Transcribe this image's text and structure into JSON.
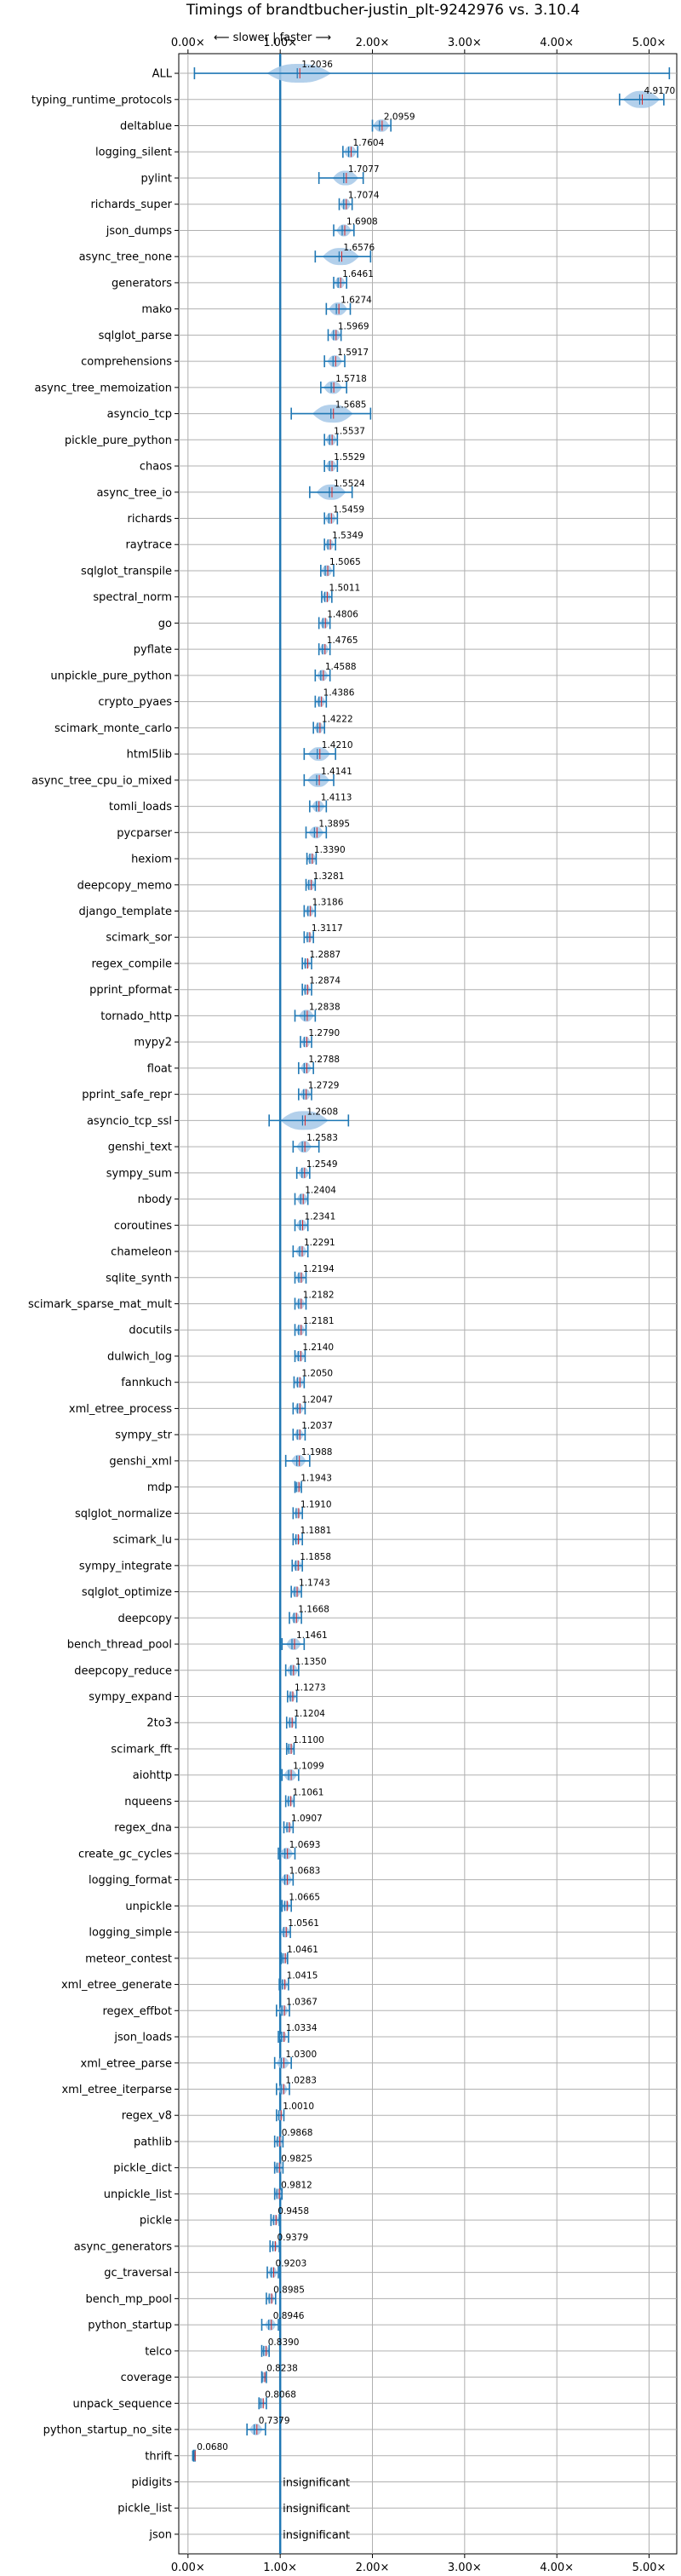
{
  "chart_data": {
    "type": "violin",
    "title": "Timings of brandtbucher-justin_plt-9242976 vs. 3.10.4",
    "subtitle": "⟵ slower | faster ⟶",
    "xlim": [
      -0.1,
      5.3
    ],
    "xticks": [
      0,
      1,
      2,
      3,
      4,
      5
    ],
    "xtick_labels": [
      "0.00×",
      "1.00×",
      "2.00×",
      "3.00×",
      "4.00×",
      "5.00×"
    ],
    "grid": true,
    "reference_line": 1.0,
    "colors": {
      "violin": "#a6c8e8",
      "line": "#1f77b4",
      "mean": "#d62728"
    },
    "benchmarks": [
      {
        "name": "ALL",
        "value": 1.2036,
        "label": "1.2036",
        "min": 0.07,
        "max": 5.22,
        "spread": 0.35
      },
      {
        "name": "typing_runtime_protocols",
        "value": 4.917,
        "label": "4.9170",
        "min": 4.68,
        "max": 5.16,
        "spread": 0.2
      },
      {
        "name": "deltablue",
        "value": 2.0959,
        "label": "2.0959",
        "min": 2.0,
        "max": 2.2,
        "spread": 0.09
      },
      {
        "name": "logging_silent",
        "value": 1.7604,
        "label": "1.7604",
        "min": 1.68,
        "max": 1.84,
        "spread": 0.07
      },
      {
        "name": "pylint",
        "value": 1.7077,
        "label": "1.7077",
        "min": 1.42,
        "max": 1.9,
        "spread": 0.14
      },
      {
        "name": "richards_super",
        "value": 1.7074,
        "label": "1.7074",
        "min": 1.64,
        "max": 1.78,
        "spread": 0.06
      },
      {
        "name": "json_dumps",
        "value": 1.6908,
        "label": "1.6908",
        "min": 1.58,
        "max": 1.8,
        "spread": 0.08
      },
      {
        "name": "async_tree_none",
        "value": 1.6576,
        "label": "1.6576",
        "min": 1.38,
        "max": 1.98,
        "spread": 0.2
      },
      {
        "name": "generators",
        "value": 1.6461,
        "label": "1.6461",
        "min": 1.58,
        "max": 1.72,
        "spread": 0.06
      },
      {
        "name": "mako",
        "value": 1.6274,
        "label": "1.6274",
        "min": 1.5,
        "max": 1.76,
        "spread": 0.1
      },
      {
        "name": "sqlglot_parse",
        "value": 1.5969,
        "label": "1.5969",
        "min": 1.52,
        "max": 1.66,
        "spread": 0.06
      },
      {
        "name": "comprehensions",
        "value": 1.5917,
        "label": "1.5917",
        "min": 1.48,
        "max": 1.7,
        "spread": 0.08
      },
      {
        "name": "async_tree_memoization",
        "value": 1.5718,
        "label": "1.5718",
        "min": 1.44,
        "max": 1.72,
        "spread": 0.1
      },
      {
        "name": "asyncio_tcp",
        "value": 1.5685,
        "label": "1.5685",
        "min": 1.12,
        "max": 1.98,
        "spread": 0.22
      },
      {
        "name": "pickle_pure_python",
        "value": 1.5537,
        "label": "1.5537",
        "min": 1.48,
        "max": 1.62,
        "spread": 0.06
      },
      {
        "name": "chaos",
        "value": 1.5529,
        "label": "1.5529",
        "min": 1.48,
        "max": 1.62,
        "spread": 0.06
      },
      {
        "name": "async_tree_io",
        "value": 1.5524,
        "label": "1.5524",
        "min": 1.32,
        "max": 1.78,
        "spread": 0.16
      },
      {
        "name": "richards",
        "value": 1.5459,
        "label": "1.5459",
        "min": 1.48,
        "max": 1.62,
        "spread": 0.06
      },
      {
        "name": "raytrace",
        "value": 1.5349,
        "label": "1.5349",
        "min": 1.48,
        "max": 1.6,
        "spread": 0.05
      },
      {
        "name": "sqlglot_transpile",
        "value": 1.5065,
        "label": "1.5065",
        "min": 1.44,
        "max": 1.58,
        "spread": 0.06
      },
      {
        "name": "spectral_norm",
        "value": 1.5011,
        "label": "1.5011",
        "min": 1.45,
        "max": 1.56,
        "spread": 0.05
      },
      {
        "name": "go",
        "value": 1.4806,
        "label": "1.4806",
        "min": 1.42,
        "max": 1.54,
        "spread": 0.05
      },
      {
        "name": "pyflate",
        "value": 1.4765,
        "label": "1.4765",
        "min": 1.42,
        "max": 1.54,
        "spread": 0.05
      },
      {
        "name": "unpickle_pure_python",
        "value": 1.4588,
        "label": "1.4588",
        "min": 1.38,
        "max": 1.54,
        "spread": 0.06
      },
      {
        "name": "crypto_pyaes",
        "value": 1.4386,
        "label": "1.4386",
        "min": 1.38,
        "max": 1.5,
        "spread": 0.05
      },
      {
        "name": "scimark_monte_carlo",
        "value": 1.4222,
        "label": "1.4222",
        "min": 1.36,
        "max": 1.48,
        "spread": 0.05
      },
      {
        "name": "html5lib",
        "value": 1.421,
        "label": "1.4210",
        "min": 1.26,
        "max": 1.6,
        "spread": 0.12
      },
      {
        "name": "async_tree_cpu_io_mixed",
        "value": 1.4141,
        "label": "1.4141",
        "min": 1.26,
        "max": 1.58,
        "spread": 0.12
      },
      {
        "name": "tomli_loads",
        "value": 1.4113,
        "label": "1.4113",
        "min": 1.32,
        "max": 1.5,
        "spread": 0.07
      },
      {
        "name": "pycparser",
        "value": 1.3895,
        "label": "1.3895",
        "min": 1.28,
        "max": 1.5,
        "spread": 0.08
      },
      {
        "name": "hexiom",
        "value": 1.339,
        "label": "1.3390",
        "min": 1.29,
        "max": 1.39,
        "spread": 0.05
      },
      {
        "name": "deepcopy_memo",
        "value": 1.3281,
        "label": "1.3281",
        "min": 1.28,
        "max": 1.38,
        "spread": 0.05
      },
      {
        "name": "django_template",
        "value": 1.3186,
        "label": "1.3186",
        "min": 1.26,
        "max": 1.38,
        "spread": 0.05
      },
      {
        "name": "scimark_sor",
        "value": 1.3117,
        "label": "1.3117",
        "min": 1.26,
        "max": 1.36,
        "spread": 0.04
      },
      {
        "name": "regex_compile",
        "value": 1.2887,
        "label": "1.2887",
        "min": 1.24,
        "max": 1.34,
        "spread": 0.04
      },
      {
        "name": "pprint_pformat",
        "value": 1.2874,
        "label": "1.2874",
        "min": 1.24,
        "max": 1.34,
        "spread": 0.04
      },
      {
        "name": "tornado_http",
        "value": 1.2838,
        "label": "1.2838",
        "min": 1.16,
        "max": 1.38,
        "spread": 0.08
      },
      {
        "name": "mypy2",
        "value": 1.279,
        "label": "1.2790",
        "min": 1.22,
        "max": 1.34,
        "spread": 0.05
      },
      {
        "name": "float",
        "value": 1.2788,
        "label": "1.2788",
        "min": 1.2,
        "max": 1.36,
        "spread": 0.06
      },
      {
        "name": "pprint_safe_repr",
        "value": 1.2729,
        "label": "1.2729",
        "min": 1.2,
        "max": 1.34,
        "spread": 0.06
      },
      {
        "name": "asyncio_tcp_ssl",
        "value": 1.2608,
        "label": "1.2608",
        "min": 0.88,
        "max": 1.74,
        "spread": 0.26
      },
      {
        "name": "genshi_text",
        "value": 1.2583,
        "label": "1.2583",
        "min": 1.14,
        "max": 1.42,
        "spread": 0.08
      },
      {
        "name": "sympy_sum",
        "value": 1.2549,
        "label": "1.2549",
        "min": 1.18,
        "max": 1.32,
        "spread": 0.06
      },
      {
        "name": "nbody",
        "value": 1.2404,
        "label": "1.2404",
        "min": 1.16,
        "max": 1.3,
        "spread": 0.06
      },
      {
        "name": "coroutines",
        "value": 1.2341,
        "label": "1.2341",
        "min": 1.16,
        "max": 1.3,
        "spread": 0.06
      },
      {
        "name": "chameleon",
        "value": 1.2291,
        "label": "1.2291",
        "min": 1.14,
        "max": 1.3,
        "spread": 0.06
      },
      {
        "name": "sqlite_synth",
        "value": 1.2194,
        "label": "1.2194",
        "min": 1.16,
        "max": 1.28,
        "spread": 0.05
      },
      {
        "name": "scimark_sparse_mat_mult",
        "value": 1.2182,
        "label": "1.2182",
        "min": 1.16,
        "max": 1.28,
        "spread": 0.05
      },
      {
        "name": "docutils",
        "value": 1.2181,
        "label": "1.2181",
        "min": 1.16,
        "max": 1.28,
        "spread": 0.05
      },
      {
        "name": "dulwich_log",
        "value": 1.214,
        "label": "1.2140",
        "min": 1.16,
        "max": 1.27,
        "spread": 0.05
      },
      {
        "name": "fannkuch",
        "value": 1.205,
        "label": "1.2050",
        "min": 1.15,
        "max": 1.26,
        "spread": 0.05
      },
      {
        "name": "xml_etree_process",
        "value": 1.2047,
        "label": "1.2047",
        "min": 1.14,
        "max": 1.27,
        "spread": 0.05
      },
      {
        "name": "sympy_str",
        "value": 1.2037,
        "label": "1.2037",
        "min": 1.14,
        "max": 1.27,
        "spread": 0.05
      },
      {
        "name": "genshi_xml",
        "value": 1.1988,
        "label": "1.1988",
        "min": 1.06,
        "max": 1.32,
        "spread": 0.08
      },
      {
        "name": "mdp",
        "value": 1.1943,
        "label": "1.1943",
        "min": 1.16,
        "max": 1.23,
        "spread": 0.04
      },
      {
        "name": "sqlglot_normalize",
        "value": 1.191,
        "label": "1.1910",
        "min": 1.14,
        "max": 1.24,
        "spread": 0.04
      },
      {
        "name": "scimark_lu",
        "value": 1.1881,
        "label": "1.1881",
        "min": 1.14,
        "max": 1.24,
        "spread": 0.04
      },
      {
        "name": "sympy_integrate",
        "value": 1.1858,
        "label": "1.1858",
        "min": 1.13,
        "max": 1.24,
        "spread": 0.05
      },
      {
        "name": "sqlglot_optimize",
        "value": 1.1743,
        "label": "1.1743",
        "min": 1.12,
        "max": 1.23,
        "spread": 0.05
      },
      {
        "name": "deepcopy",
        "value": 1.1668,
        "label": "1.1668",
        "min": 1.1,
        "max": 1.23,
        "spread": 0.05
      },
      {
        "name": "bench_thread_pool",
        "value": 1.1461,
        "label": "1.1461",
        "min": 1.02,
        "max": 1.26,
        "spread": 0.08
      },
      {
        "name": "deepcopy_reduce",
        "value": 1.135,
        "label": "1.1350",
        "min": 1.06,
        "max": 1.2,
        "spread": 0.06
      },
      {
        "name": "sympy_expand",
        "value": 1.1273,
        "label": "1.1273",
        "min": 1.08,
        "max": 1.18,
        "spread": 0.04
      },
      {
        "name": "2to3",
        "value": 1.1204,
        "label": "1.1204",
        "min": 1.07,
        "max": 1.17,
        "spread": 0.04
      },
      {
        "name": "scimark_fft",
        "value": 1.11,
        "label": "1.1100",
        "min": 1.07,
        "max": 1.15,
        "spread": 0.04
      },
      {
        "name": "aiohttp",
        "value": 1.1099,
        "label": "1.1099",
        "min": 1.02,
        "max": 1.2,
        "spread": 0.07
      },
      {
        "name": "nqueens",
        "value": 1.1061,
        "label": "1.1061",
        "min": 1.06,
        "max": 1.15,
        "spread": 0.04
      },
      {
        "name": "regex_dna",
        "value": 1.0907,
        "label": "1.0907",
        "min": 1.04,
        "max": 1.14,
        "spread": 0.04
      },
      {
        "name": "create_gc_cycles",
        "value": 1.0693,
        "label": "1.0693",
        "min": 0.98,
        "max": 1.16,
        "spread": 0.07
      },
      {
        "name": "logging_format",
        "value": 1.0683,
        "label": "1.0683",
        "min": 1.0,
        "max": 1.14,
        "spread": 0.06
      },
      {
        "name": "unpickle",
        "value": 1.0665,
        "label": "1.0665",
        "min": 1.02,
        "max": 1.12,
        "spread": 0.04
      },
      {
        "name": "logging_simple",
        "value": 1.0561,
        "label": "1.0561",
        "min": 1.0,
        "max": 1.11,
        "spread": 0.05
      },
      {
        "name": "meteor_contest",
        "value": 1.0461,
        "label": "1.0461",
        "min": 1.01,
        "max": 1.08,
        "spread": 0.04
      },
      {
        "name": "xml_etree_generate",
        "value": 1.0415,
        "label": "1.0415",
        "min": 0.99,
        "max": 1.09,
        "spread": 0.04
      },
      {
        "name": "regex_effbot",
        "value": 1.0367,
        "label": "1.0367",
        "min": 0.96,
        "max": 1.1,
        "spread": 0.05
      },
      {
        "name": "json_loads",
        "value": 1.0334,
        "label": "1.0334",
        "min": 0.98,
        "max": 1.09,
        "spread": 0.04
      },
      {
        "name": "xml_etree_parse",
        "value": 1.03,
        "label": "1.0300",
        "min": 0.94,
        "max": 1.12,
        "spread": 0.07
      },
      {
        "name": "xml_etree_iterparse",
        "value": 1.0283,
        "label": "1.0283",
        "min": 0.96,
        "max": 1.1,
        "spread": 0.05
      },
      {
        "name": "regex_v8",
        "value": 1.001,
        "label": "1.0010",
        "min": 0.96,
        "max": 1.04,
        "spread": 0.03
      },
      {
        "name": "pathlib",
        "value": 0.9868,
        "label": "0.9868",
        "min": 0.94,
        "max": 1.03,
        "spread": 0.04
      },
      {
        "name": "pickle_dict",
        "value": 0.9825,
        "label": "0.9825",
        "min": 0.94,
        "max": 1.03,
        "spread": 0.04
      },
      {
        "name": "unpickle_list",
        "value": 0.9812,
        "label": "0.9812",
        "min": 0.94,
        "max": 1.02,
        "spread": 0.04
      },
      {
        "name": "pickle",
        "value": 0.9458,
        "label": "0.9458",
        "min": 0.9,
        "max": 0.99,
        "spread": 0.04
      },
      {
        "name": "async_generators",
        "value": 0.9379,
        "label": "0.9379",
        "min": 0.89,
        "max": 0.99,
        "spread": 0.04
      },
      {
        "name": "gc_traversal",
        "value": 0.9203,
        "label": "0.9203",
        "min": 0.86,
        "max": 0.98,
        "spread": 0.05
      },
      {
        "name": "bench_mp_pool",
        "value": 0.8985,
        "label": "0.8985",
        "min": 0.85,
        "max": 0.95,
        "spread": 0.04
      },
      {
        "name": "python_startup",
        "value": 0.8946,
        "label": "0.8946",
        "min": 0.8,
        "max": 0.98,
        "spread": 0.06
      },
      {
        "name": "telco",
        "value": 0.839,
        "label": "0.8390",
        "min": 0.8,
        "max": 0.88,
        "spread": 0.04
      },
      {
        "name": "coverage",
        "value": 0.8238,
        "label": "0.8238",
        "min": 0.8,
        "max": 0.85,
        "spread": 0.03
      },
      {
        "name": "unpack_sequence",
        "value": 0.8068,
        "label": "0.8068",
        "min": 0.77,
        "max": 0.85,
        "spread": 0.03
      },
      {
        "name": "python_startup_no_site",
        "value": 0.7379,
        "label": "0.7379",
        "min": 0.64,
        "max": 0.84,
        "spread": 0.07
      },
      {
        "name": "thrift",
        "value": 0.068,
        "label": "0.0680",
        "min": 0.06,
        "max": 0.076,
        "spread": 0.01
      },
      {
        "name": "pidigits",
        "value": null,
        "label": "insignificant"
      },
      {
        "name": "pickle_list",
        "value": null,
        "label": "insignificant"
      },
      {
        "name": "json",
        "value": null,
        "label": "insignificant"
      }
    ]
  }
}
